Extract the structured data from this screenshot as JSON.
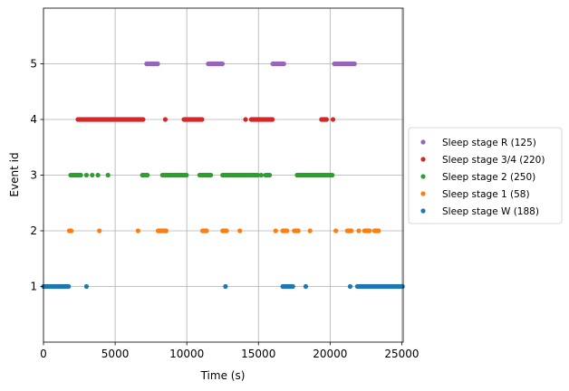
{
  "chart_data": {
    "type": "scatter",
    "xlabel": "Time (s)",
    "ylabel": "Event id",
    "xlim": [
      0,
      25100
    ],
    "ylim": [
      0,
      6
    ],
    "x_ticks": [
      0,
      5000,
      10000,
      15000,
      20000,
      25000
    ],
    "y_ticks": [
      1,
      2,
      3,
      4,
      5
    ],
    "grid": true,
    "legend_position": "right-outside",
    "series": [
      {
        "name": "Sleep stage R (125)",
        "event_id": 5,
        "color": "#9467bd",
        "ranges": [
          [
            7200,
            8000
          ],
          [
            11500,
            12500
          ],
          [
            16000,
            16800
          ],
          [
            20300,
            21700
          ]
        ],
        "points": []
      },
      {
        "name": "Sleep stage 3/4 (220)",
        "event_id": 4,
        "color": "#d62728",
        "ranges": [
          [
            2400,
            7000
          ],
          [
            9800,
            11100
          ],
          [
            14500,
            16000
          ],
          [
            19400,
            19800
          ]
        ],
        "points": [
          8500,
          14100,
          20200
        ]
      },
      {
        "name": "Sleep stage 2 (250)",
        "event_id": 3,
        "color": "#2ca02c",
        "ranges": [
          [
            1900,
            2600
          ],
          [
            6900,
            7300
          ],
          [
            8300,
            10000
          ],
          [
            10900,
            11700
          ],
          [
            12500,
            15000
          ],
          [
            15500,
            15800
          ],
          [
            17700,
            20200
          ]
        ],
        "points": [
          3000,
          3400,
          3800,
          4500,
          15200
        ]
      },
      {
        "name": "Sleep stage 1 (58)",
        "event_id": 2,
        "color": "#ff7f0e",
        "ranges": [
          [
            1800,
            1950
          ],
          [
            8000,
            8600
          ],
          [
            11100,
            11400
          ],
          [
            12500,
            12800
          ],
          [
            16700,
            17000
          ],
          [
            17500,
            17800
          ],
          [
            21200,
            21500
          ],
          [
            22400,
            22800
          ],
          [
            23100,
            23400
          ]
        ],
        "points": [
          3900,
          6600,
          13700,
          16200,
          18600,
          20400,
          22000
        ]
      },
      {
        "name": "Sleep stage W (188)",
        "event_id": 1,
        "color": "#1f77b4",
        "ranges": [
          [
            0,
            1800
          ],
          [
            16700,
            17400
          ],
          [
            21900,
            25100
          ]
        ],
        "points": [
          3000,
          12700,
          18300,
          21400
        ]
      }
    ]
  }
}
